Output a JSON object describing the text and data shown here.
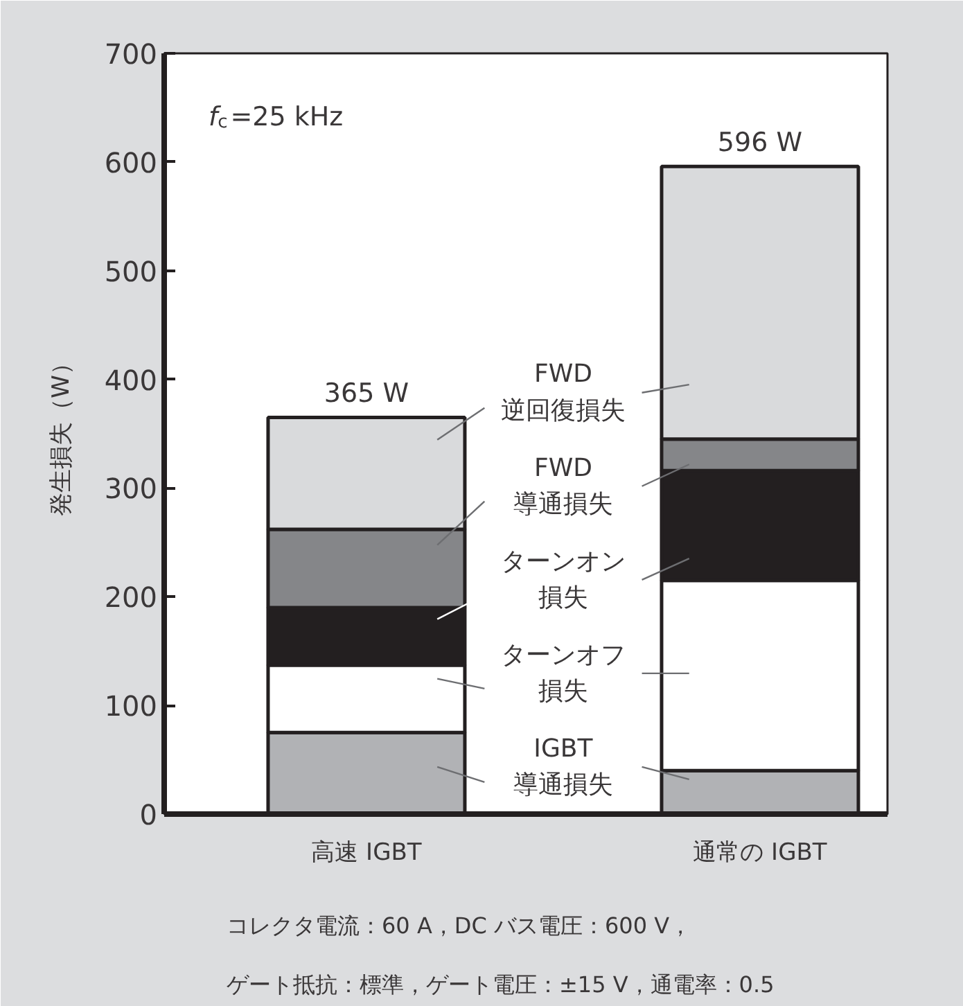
{
  "chart_data": {
    "type": "bar",
    "stacked": true,
    "ylabel": "発生損失（W）",
    "categories": [
      "高速 IGBT",
      "通常の IGBT"
    ],
    "series": [
      {
        "name": "IGBT\n導通損失",
        "color": "#b1b2b5",
        "values": [
          75,
          40
        ]
      },
      {
        "name": "ターンオフ損失",
        "color": "#ffffff",
        "values": [
          62,
          175
        ]
      },
      {
        "name": "ターンオン損失",
        "color": "#231f20",
        "values": [
          53,
          101
        ]
      },
      {
        "name": "FWD\n導通損失",
        "color": "#858689",
        "values": [
          72,
          29
        ]
      },
      {
        "name": "FWD\n逆回復損失",
        "color": "#d9dadc",
        "values": [
          103,
          251
        ]
      }
    ],
    "ylim": [
      0,
      700
    ],
    "yticks": [
      0,
      100,
      200,
      300,
      400,
      500,
      600,
      700
    ],
    "totals": [
      "365 W",
      "596 W"
    ],
    "annotations": [
      "f$_{c}$=25 kHz",
      "コレクタ電流：60 A，DC バス電圧：600 V，",
      "ゲート抵抗：標準，ゲート電圧：±15 V，通電率：0.5"
    ]
  }
}
